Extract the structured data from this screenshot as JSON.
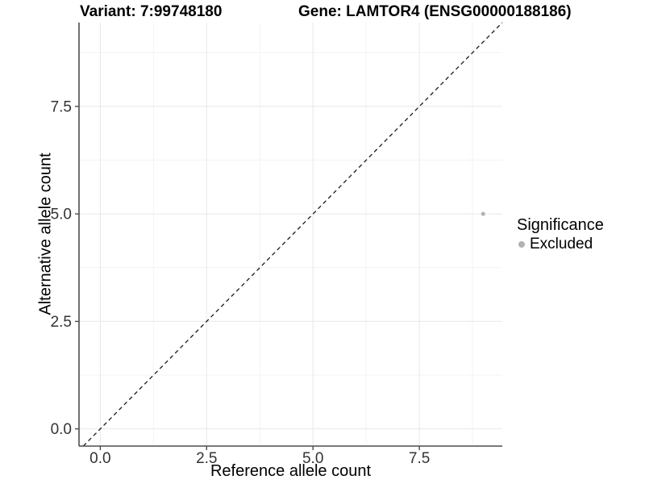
{
  "figure": {
    "title_left": "Variant: 7:99748180",
    "title_right": "Gene: LAMTOR4 (ENSG00000188186)"
  },
  "chart_data": {
    "type": "scatter",
    "title": "Variant: 7:99748180 — Gene: LAMTOR4 (ENSG00000188186)",
    "xlabel": "Reference allele count",
    "ylabel": "Alternative allele count",
    "xlim": [
      -0.5,
      9.45
    ],
    "ylim": [
      -0.4,
      9.45
    ],
    "x_ticks": {
      "values": [
        0,
        2.5,
        5,
        7.5
      ],
      "labels": [
        "0.0",
        "2.5",
        "5.0",
        "7.5"
      ]
    },
    "y_ticks": {
      "values": [
        0,
        2.5,
        5,
        7.5
      ],
      "labels": [
        "0.0",
        "2.5",
        "5.0",
        "7.5"
      ]
    },
    "x_minor": [
      1.25,
      3.75,
      6.25,
      8.75
    ],
    "y_minor": [
      1.25,
      3.75,
      6.25,
      8.75
    ],
    "grid": true,
    "reference_line": {
      "type": "identity",
      "slope": 1,
      "intercept": 0,
      "style": "dashed"
    },
    "series": [
      {
        "name": "Excluded",
        "color": "#b2b2b2",
        "points": [
          {
            "x": 9,
            "y": 5
          }
        ]
      }
    ],
    "legend": {
      "title": "Significance",
      "position": "right",
      "items": [
        {
          "label": "Excluded",
          "color": "#b2b2b2"
        }
      ]
    },
    "colors": {
      "background": "#ffffff",
      "grid_major": "#e8e8e8",
      "grid_minor": "#f3f3f3",
      "axis_line": "#4d4d4d",
      "tick_text": "#333333",
      "reference_line": "#1a1a1a",
      "point": "#b2b2b2"
    }
  }
}
